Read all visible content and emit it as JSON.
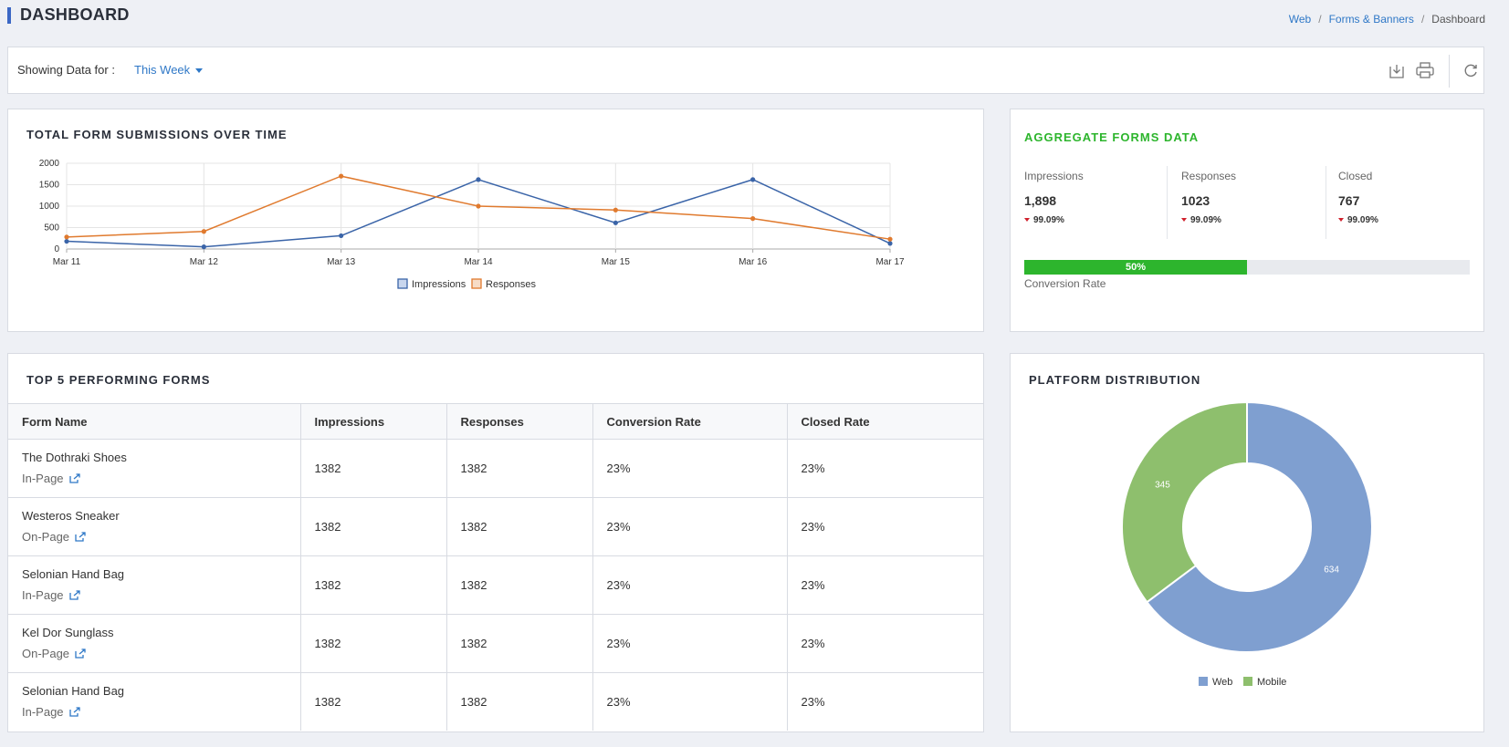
{
  "header": {
    "title": "DASHBOARD",
    "breadcrumb": [
      "Web",
      "Forms & Banners",
      "Dashboard"
    ]
  },
  "filter": {
    "label": "Showing Data for :",
    "selected": "This Week",
    "tools": [
      "download-icon",
      "print-icon",
      "refresh-icon"
    ]
  },
  "line_chart": {
    "title": "TOTAL FORM SUBMISSIONS OVER TIME"
  },
  "aggregate": {
    "title": "AGGREGATE FORMS DATA",
    "columns": [
      {
        "label": "Impressions",
        "value": "1,898",
        "delta": "99.09%"
      },
      {
        "label": "Responses",
        "value": "1023",
        "delta": "99.09%"
      },
      {
        "label": "Closed",
        "value": "767",
        "delta": "99.09%"
      }
    ],
    "conversion": {
      "value": 50,
      "text": "50%",
      "label": "Conversion Rate"
    }
  },
  "top_forms": {
    "title": "TOP 5 PERFORMING FORMS",
    "headers": [
      "Form Name",
      "Impressions",
      "Responses",
      "Conversion Rate",
      "Closed Rate"
    ],
    "rows": [
      {
        "name": "The Dothraki Shoes",
        "type": "In-Page",
        "impressions": "1382",
        "responses": "1382",
        "conversion": "23%",
        "closed": "23%"
      },
      {
        "name": "Westeros Sneaker",
        "type": "On-Page",
        "impressions": "1382",
        "responses": "1382",
        "conversion": "23%",
        "closed": "23%"
      },
      {
        "name": "Selonian Hand Bag",
        "type": "In-Page",
        "impressions": "1382",
        "responses": "1382",
        "conversion": "23%",
        "closed": "23%"
      },
      {
        "name": "Kel Dor Sunglass",
        "type": "On-Page",
        "impressions": "1382",
        "responses": "1382",
        "conversion": "23%",
        "closed": "23%"
      },
      {
        "name": "Selonian Hand Bag",
        "type": "In-Page",
        "impressions": "1382",
        "responses": "1382",
        "conversion": "23%",
        "closed": "23%"
      }
    ]
  },
  "platform": {
    "title": "PLATFORM DISTRIBUTION"
  },
  "colors": {
    "impressions": "#3a64a8",
    "responses": "#e07a2e",
    "web": "#7f9fd0",
    "mobile": "#8ebf6d",
    "accent": "#2f78c7",
    "green": "#2db52d"
  },
  "chart_data": [
    {
      "type": "line",
      "title": "TOTAL FORM SUBMISSIONS OVER TIME",
      "x": [
        "Mar 11",
        "Mar 12",
        "Mar 13",
        "Mar 14",
        "Mar 15",
        "Mar 16",
        "Mar 17"
      ],
      "yticks": [
        0,
        500,
        1000,
        1500,
        2000
      ],
      "ylim": [
        0,
        2000
      ],
      "grid": true,
      "legend": "bottom",
      "series": [
        {
          "name": "Impressions",
          "values": [
            180,
            50,
            310,
            1620,
            610,
            1620,
            130
          ]
        },
        {
          "name": "Responses",
          "values": [
            280,
            410,
            1700,
            1000,
            910,
            710,
            230
          ]
        }
      ]
    },
    {
      "type": "pie",
      "donut": true,
      "legend": "bottom",
      "labels": [
        "Web",
        "Mobile"
      ],
      "values": [
        634,
        345
      ]
    }
  ]
}
